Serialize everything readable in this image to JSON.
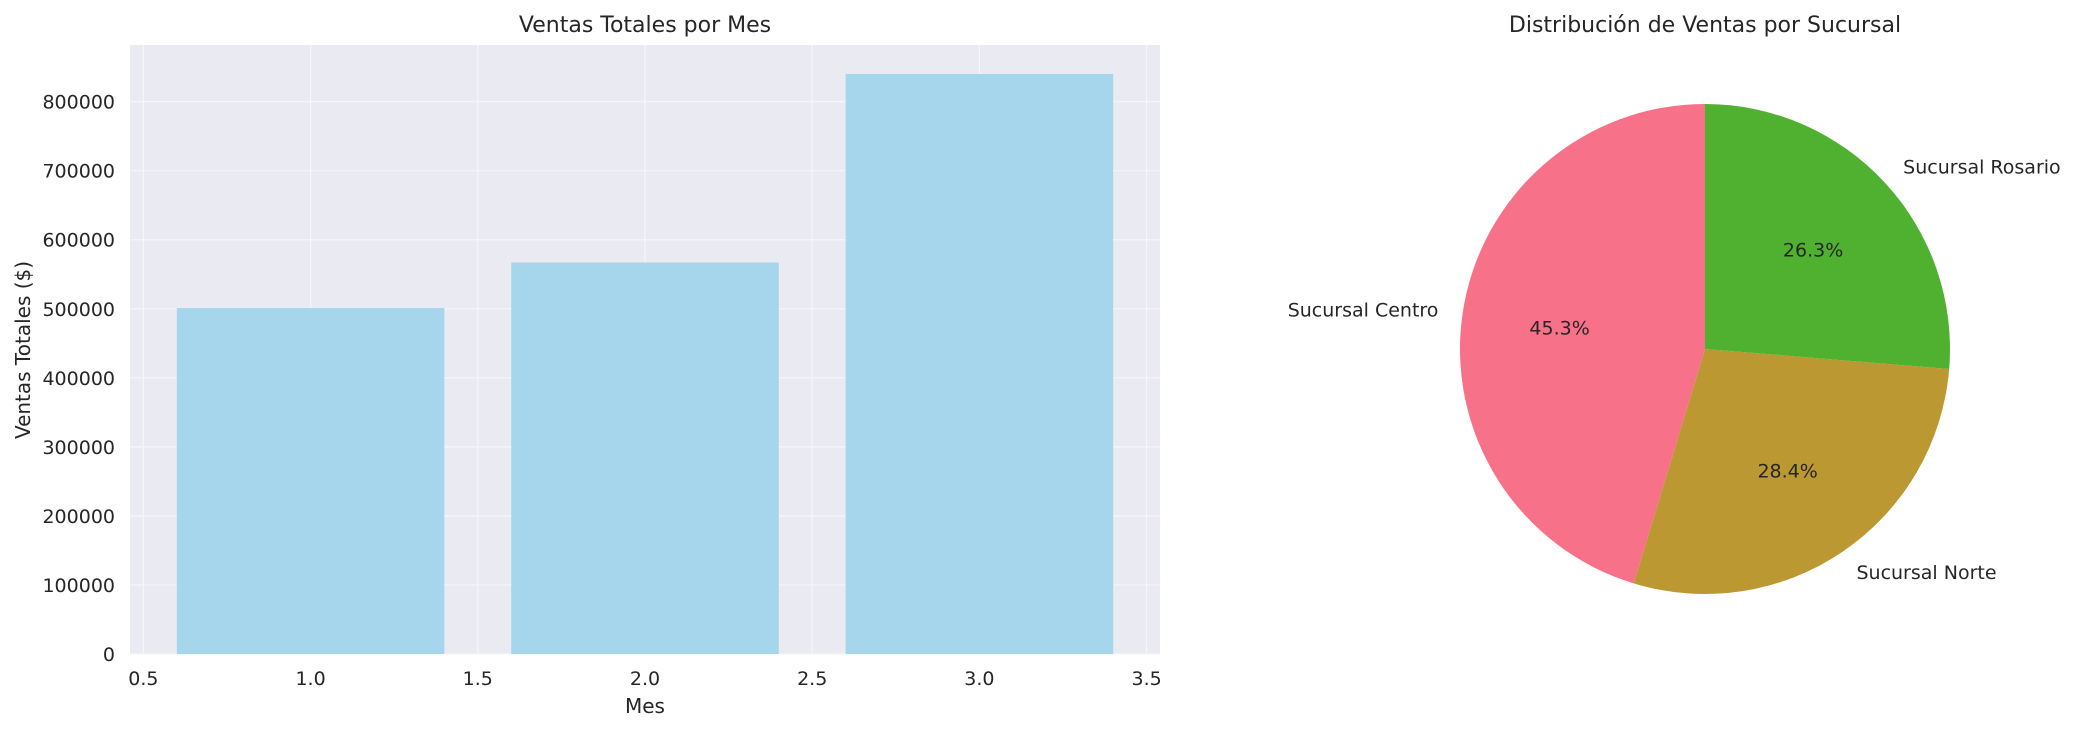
{
  "chart_data": [
    {
      "type": "bar",
      "title": "Ventas Totales por Mes",
      "xlabel": "Mes",
      "ylabel": "Ventas Totales ($)",
      "x": [
        1.0,
        2.0,
        3.0
      ],
      "values": [
        501000,
        567000,
        840000
      ],
      "bar_width": 0.8,
      "xlim": [
        0.46,
        3.54
      ],
      "ylim": [
        0,
        882000
      ],
      "xticks": [
        0.5,
        1.0,
        1.5,
        2.0,
        2.5,
        3.0,
        3.5
      ],
      "xtick_labels": [
        "0.5",
        "1.0",
        "1.5",
        "2.0",
        "2.5",
        "3.0",
        "3.5"
      ],
      "yticks": [
        0,
        100000,
        200000,
        300000,
        400000,
        500000,
        600000,
        700000,
        800000
      ],
      "ytick_labels": [
        "0",
        "100000",
        "200000",
        "300000",
        "400000",
        "500000",
        "600000",
        "700000",
        "800000"
      ],
      "grid": true,
      "colors": {
        "bar": "#a5d6ec",
        "plot_bg": "#eaeaf2",
        "grid": "#f6f6f9"
      }
    },
    {
      "type": "pie",
      "title": "Distribución de Ventas por Sucursal",
      "labels": [
        "Sucursal Centro",
        "Sucursal Norte",
        "Sucursal Rosario"
      ],
      "values": [
        45.3,
        28.4,
        26.3
      ],
      "value_labels": [
        "45.3%",
        "28.4%",
        "26.3%"
      ],
      "start_angle_deg": 90,
      "direction": "counterclockwise",
      "colors": [
        "#f77189",
        "#bb9832",
        "#50b131"
      ]
    }
  ]
}
